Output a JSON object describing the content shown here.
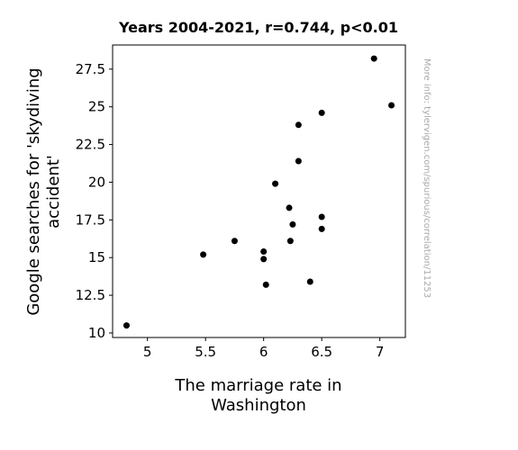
{
  "chart_data": {
    "type": "scatter",
    "title": "Years 2004-2021, r=0.744, p<0.01",
    "xlabel_lines": [
      "The marriage rate in",
      "Washington"
    ],
    "ylabel_lines": [
      "Google searches for 'skydiving",
      "accident'"
    ],
    "watermark": "More info: tylervigen.com/spurious/correlation/11253",
    "xlim": [
      4.7,
      7.22
    ],
    "ylim": [
      9.7,
      29.1
    ],
    "x_ticks": [
      {
        "value": 5,
        "label": "5"
      },
      {
        "value": 5.5,
        "label": "5.5"
      },
      {
        "value": 6,
        "label": "6"
      },
      {
        "value": 6.5,
        "label": "6.5"
      },
      {
        "value": 7,
        "label": "7"
      }
    ],
    "y_ticks": [
      {
        "value": 10,
        "label": "10"
      },
      {
        "value": 12.5,
        "label": "12.5"
      },
      {
        "value": 15,
        "label": "15"
      },
      {
        "value": 17.5,
        "label": "17.5"
      },
      {
        "value": 20,
        "label": "20"
      },
      {
        "value": 22.5,
        "label": "22.5"
      },
      {
        "value": 25,
        "label": "25"
      },
      {
        "value": 27.5,
        "label": "27.5"
      }
    ],
    "grid": false,
    "legend": "none",
    "marker_color": "#000000",
    "points": [
      {
        "x": 4.82,
        "y": 10.5
      },
      {
        "x": 5.48,
        "y": 15.2
      },
      {
        "x": 5.75,
        "y": 16.1
      },
      {
        "x": 6.0,
        "y": 15.4
      },
      {
        "x": 6.0,
        "y": 14.9
      },
      {
        "x": 6.02,
        "y": 13.2
      },
      {
        "x": 6.1,
        "y": 19.9
      },
      {
        "x": 6.22,
        "y": 18.3
      },
      {
        "x": 6.23,
        "y": 16.1
      },
      {
        "x": 6.25,
        "y": 17.2
      },
      {
        "x": 6.3,
        "y": 23.8
      },
      {
        "x": 6.3,
        "y": 21.4
      },
      {
        "x": 6.4,
        "y": 13.4
      },
      {
        "x": 6.5,
        "y": 24.6
      },
      {
        "x": 6.5,
        "y": 17.7
      },
      {
        "x": 6.5,
        "y": 16.9
      },
      {
        "x": 6.95,
        "y": 28.2
      },
      {
        "x": 7.1,
        "y": 25.1
      }
    ]
  }
}
